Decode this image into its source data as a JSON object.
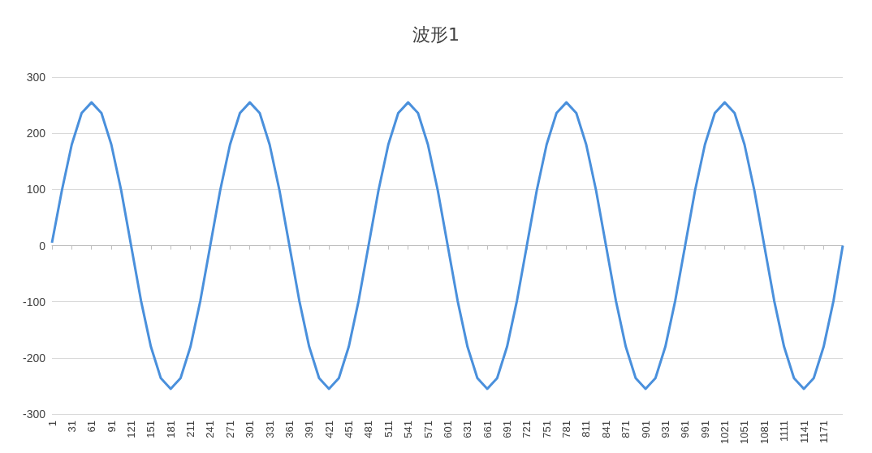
{
  "chart_data": {
    "type": "line",
    "title": "波形1",
    "x": [
      1,
      16,
      31,
      46,
      61,
      76,
      91,
      106,
      121,
      136,
      151,
      166,
      181,
      196,
      211,
      226,
      241,
      256,
      271,
      286,
      301,
      316,
      331,
      346,
      361,
      376,
      391,
      406,
      421,
      436,
      451,
      466,
      481,
      496,
      511,
      526,
      541,
      556,
      571,
      586,
      601,
      616,
      631,
      646,
      661,
      676,
      691,
      706,
      721,
      736,
      751,
      766,
      781,
      796,
      811,
      826,
      841,
      856,
      871,
      886,
      901,
      916,
      931,
      946,
      961,
      976,
      991,
      1006,
      1021,
      1036,
      1051,
      1066,
      1081,
      1096,
      1111,
      1126,
      1141,
      1156,
      1171,
      1186,
      1200
    ],
    "series": [
      {
        "color": "#4a90dc",
        "values": [
          5,
          98,
          180,
          236,
          255,
          236,
          180,
          98,
          0,
          -98,
          -180,
          -236,
          -255,
          -236,
          -180,
          -98,
          0,
          98,
          180,
          236,
          255,
          236,
          180,
          98,
          0,
          -98,
          -180,
          -236,
          -255,
          -236,
          -180,
          -98,
          0,
          98,
          180,
          236,
          255,
          236,
          180,
          98,
          0,
          -98,
          -180,
          -236,
          -255,
          -236,
          -180,
          -98,
          0,
          98,
          180,
          236,
          255,
          236,
          180,
          98,
          0,
          -98,
          -180,
          -236,
          -255,
          -236,
          -180,
          -98,
          0,
          98,
          180,
          236,
          255,
          236,
          180,
          98,
          0,
          -98,
          -180,
          -236,
          -255,
          -236,
          -180,
          -98,
          0
        ]
      }
    ],
    "xlim": [
      1,
      1200
    ],
    "xticks": [
      1,
      31,
      61,
      91,
      121,
      151,
      181,
      211,
      241,
      271,
      301,
      331,
      361,
      391,
      421,
      451,
      481,
      511,
      541,
      571,
      601,
      631,
      661,
      691,
      721,
      751,
      781,
      811,
      841,
      871,
      901,
      931,
      961,
      991,
      1021,
      1051,
      1081,
      1111,
      1141,
      1171
    ],
    "ylim": [
      -300,
      300
    ],
    "yticks": [
      -300,
      -200,
      -100,
      0,
      100,
      200,
      300
    ],
    "grid": "y",
    "marker": "none"
  }
}
